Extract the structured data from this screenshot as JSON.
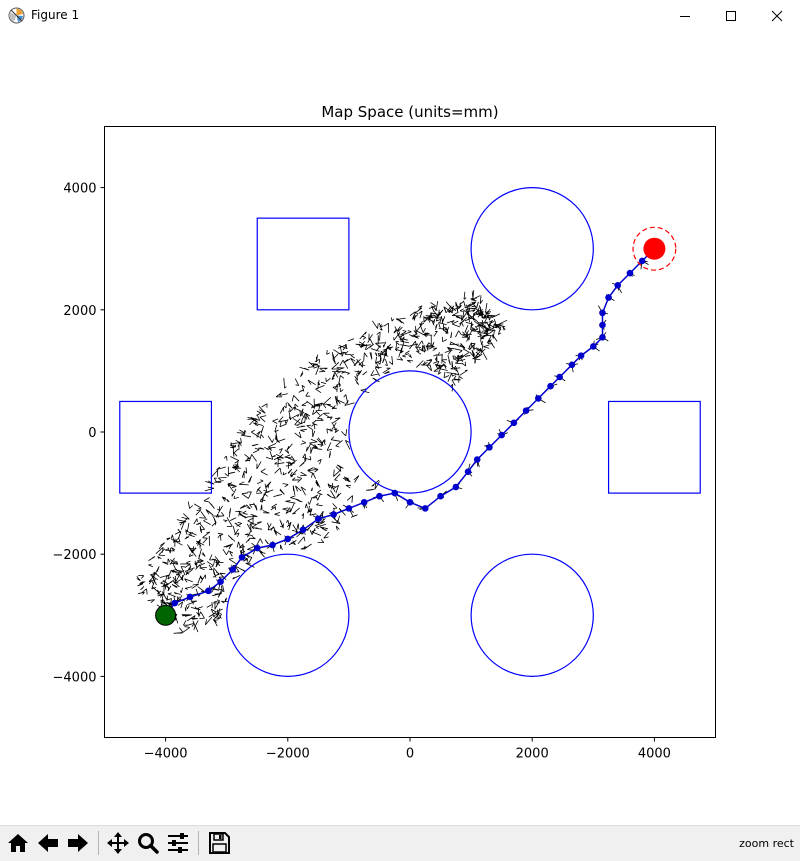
{
  "window": {
    "title": "Figure 1",
    "icon": "matplotlib-figure-icon"
  },
  "toolbar": {
    "buttons": [
      {
        "name": "home-button",
        "icon": "home-icon"
      },
      {
        "name": "back-button",
        "icon": "arrow-left-icon"
      },
      {
        "name": "forward-button",
        "icon": "arrow-right-icon"
      },
      {
        "name": "pan-button",
        "icon": "move-icon"
      },
      {
        "name": "zoom-button",
        "icon": "magnifier-icon"
      },
      {
        "name": "configure-subplots-button",
        "icon": "sliders-icon"
      },
      {
        "name": "save-button",
        "icon": "floppy-disk-icon"
      }
    ],
    "status": "zoom rect"
  },
  "chart_data": {
    "type": "scatter",
    "title": "Map Space (units=mm)",
    "xlabel": "",
    "ylabel": "",
    "xlim": [
      -5000,
      5000
    ],
    "ylim": [
      -5000,
      5000
    ],
    "xticks": [
      "−4000",
      "−2000",
      "0",
      "2000",
      "4000"
    ],
    "yticks": [
      "4000",
      "2000",
      "0",
      "−2000",
      "−4000"
    ],
    "grid": false,
    "obstacle_color": "#0000ff",
    "path_color": "#0000cc",
    "tree_color": "#000000",
    "start_color": "#006400",
    "goal_color": "#ff0000",
    "obstacles_circles": [
      {
        "cx": 2000,
        "cy": 3000,
        "r": 1000
      },
      {
        "cx": 0,
        "cy": 0,
        "r": 1000
      },
      {
        "cx": -2000,
        "cy": -3000,
        "r": 1000
      },
      {
        "cx": 2000,
        "cy": -3000,
        "r": 1000
      }
    ],
    "obstacles_rects": [
      {
        "x": -2500,
        "y": 2000,
        "w": 1500,
        "h": 1500
      },
      {
        "x": -4750,
        "y": -1000,
        "w": 1500,
        "h": 1500
      },
      {
        "x": 3250,
        "y": -1000,
        "w": 1500,
        "h": 1500
      }
    ],
    "start": {
      "x": -4000,
      "y": -3000
    },
    "goal": {
      "x": 4000,
      "y": 3000,
      "tolerance_radius": 350
    },
    "path": [
      [
        -4000,
        -3000
      ],
      [
        -3850,
        -2800
      ],
      [
        -3600,
        -2700
      ],
      [
        -3300,
        -2600
      ],
      [
        -3100,
        -2450
      ],
      [
        -2900,
        -2250
      ],
      [
        -2750,
        -2050
      ],
      [
        -2500,
        -1900
      ],
      [
        -2250,
        -1850
      ],
      [
        -2000,
        -1750
      ],
      [
        -1750,
        -1600
      ],
      [
        -1500,
        -1420
      ],
      [
        -1250,
        -1350
      ],
      [
        -1000,
        -1250
      ],
      [
        -750,
        -1150
      ],
      [
        -500,
        -1050
      ],
      [
        -250,
        -1000
      ],
      [
        0,
        -1150
      ],
      [
        250,
        -1250
      ],
      [
        500,
        -1050
      ],
      [
        750,
        -900
      ],
      [
        950,
        -650
      ],
      [
        1100,
        -450
      ],
      [
        1300,
        -250
      ],
      [
        1500,
        -50
      ],
      [
        1700,
        150
      ],
      [
        1900,
        350
      ],
      [
        2100,
        550
      ],
      [
        2300,
        750
      ],
      [
        2450,
        900
      ],
      [
        2650,
        1100
      ],
      [
        2800,
        1250
      ],
      [
        3000,
        1400
      ],
      [
        3150,
        1550
      ],
      [
        3150,
        1750
      ],
      [
        3150,
        1950
      ],
      [
        3250,
        2200
      ],
      [
        3400,
        2400
      ],
      [
        3600,
        2600
      ],
      [
        3800,
        2800
      ],
      [
        4000,
        3000
      ]
    ]
  }
}
